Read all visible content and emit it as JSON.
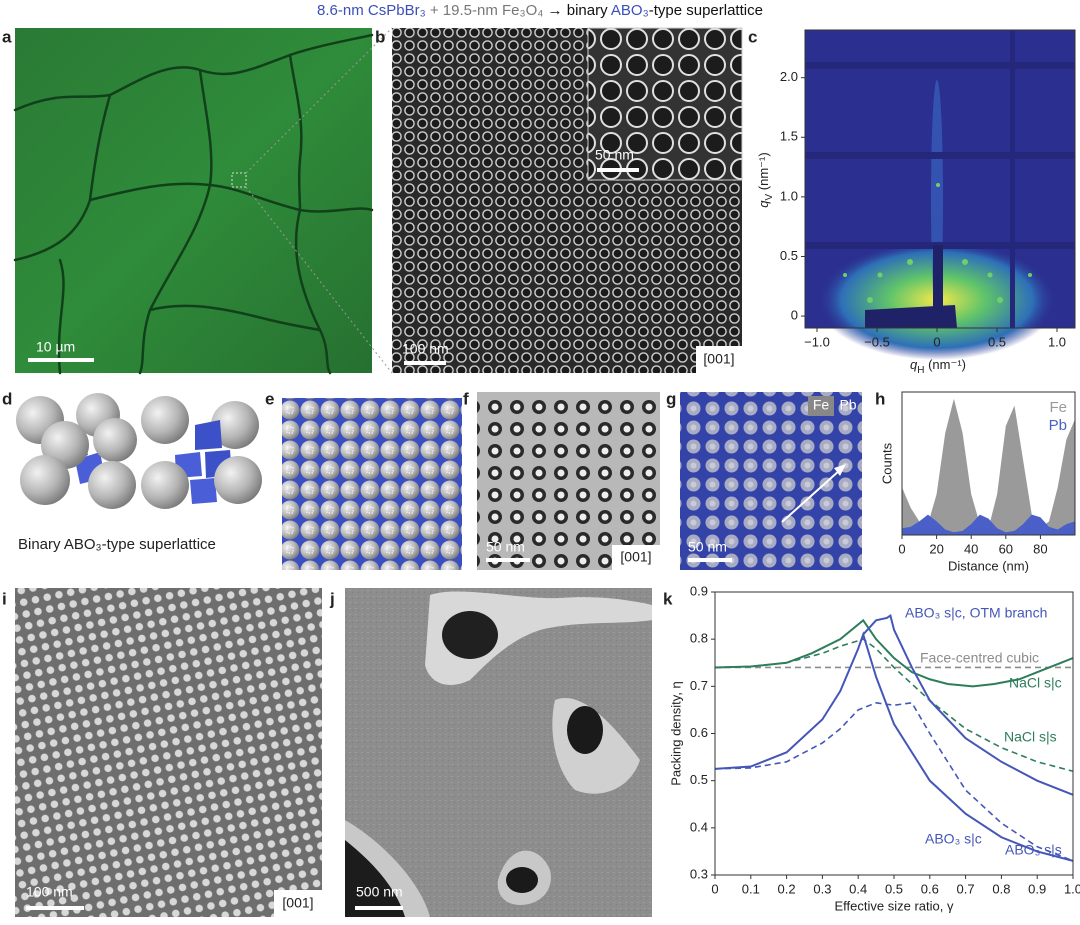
{
  "title": [
    "8.6-nm CsPbBr₃",
    " + 19.5-nm  Fe₃O₄",
    " → binary ",
    "ABO₃",
    "-type superlattice"
  ],
  "panel_labels": [
    "a",
    "b",
    "c",
    "d",
    "e",
    "f",
    "g",
    "h",
    "i",
    "j",
    "k"
  ],
  "scale_bars": {
    "a": "10 µm",
    "b": "100 nm",
    "b_inset": "50 nm",
    "f": "50 nm",
    "g": "50 nm",
    "i": "100 nm",
    "j": "500 nm"
  },
  "zone_axis": {
    "b": "[001]",
    "f": "[001]",
    "i": "[001]"
  },
  "g_channels": [
    "Fe",
    "Pb"
  ],
  "d_caption": "Binary ABO₃-type superlattice",
  "chart_data": [
    {
      "type": "image",
      "xlabel": {
        "symbol": "q",
        "subscript": "H",
        "unit": " (nm⁻¹)"
      },
      "ylabel": {
        "symbol": "q",
        "subscript": "V",
        "unit": " (nm⁻¹)"
      },
      "xlim": [
        -1.1,
        1.15
      ],
      "ylim": [
        -0.1,
        2.4
      ],
      "xticks": [
        {
          "value": -1,
          "label": "−1.0"
        },
        {
          "value": -0.5,
          "label": "−0.5"
        },
        0,
        0.5,
        {
          "value": 1,
          "label": "1.0"
        }
      ],
      "yticks": [
        0,
        0.5,
        {
          "value": 1,
          "label": "1.0"
        },
        1.5,
        {
          "value": 2,
          "label": "2.0"
        }
      ]
    },
    {
      "type": "area",
      "xlabel": "Distance (nm)",
      "ylabel": "Counts",
      "xlim": [
        0,
        100
      ],
      "ylim": [
        0,
        1.05
      ],
      "xticks": [
        0,
        20,
        40,
        60,
        80
      ],
      "series": [
        {
          "name": "Fe",
          "color": "#9a9a9a",
          "x": [
            0,
            5,
            10,
            15,
            20,
            25,
            30,
            35,
            40,
            45,
            50,
            55,
            60,
            65,
            70,
            75,
            80,
            85,
            90,
            95,
            100
          ],
          "values": [
            0.35,
            0.2,
            0.1,
            0.08,
            0.3,
            0.75,
            1.0,
            0.75,
            0.3,
            0.08,
            0.05,
            0.3,
            0.8,
            0.95,
            0.55,
            0.15,
            0.05,
            0.1,
            0.35,
            0.7,
            0.85
          ]
        },
        {
          "name": "Pb",
          "color": "#4a5fc8",
          "x": [
            0,
            5,
            10,
            15,
            20,
            25,
            30,
            35,
            40,
            45,
            50,
            55,
            60,
            65,
            70,
            75,
            80,
            85,
            90,
            95,
            100
          ],
          "values": [
            0.05,
            0.06,
            0.1,
            0.15,
            0.1,
            0.04,
            0.02,
            0.03,
            0.08,
            0.15,
            0.12,
            0.05,
            0.02,
            0.03,
            0.08,
            0.15,
            0.13,
            0.06,
            0.04,
            0.08,
            0.1
          ]
        }
      ]
    },
    {
      "type": "line",
      "xlabel": "Effective size ratio, γ",
      "ylabel": "Packing density, η",
      "xlim": [
        0,
        1
      ],
      "ylim": [
        0.3,
        0.9
      ],
      "xticks": [
        0,
        0.1,
        0.2,
        0.3,
        0.4,
        0.5,
        0.6,
        0.7,
        0.8,
        0.9,
        {
          "value": 1,
          "label": "1.0"
        }
      ],
      "yticks": [
        0.3,
        0.4,
        0.5,
        0.6,
        0.7,
        0.8,
        0.9
      ],
      "series": [
        {
          "name": "Face-centred cubic",
          "color": "#8c8c8c",
          "dash": true,
          "x": [
            0,
            1
          ],
          "values": [
            0.74,
            0.74
          ]
        },
        {
          "name": "NaCl s|c",
          "color": "#2e7d5b",
          "dash": false,
          "x": [
            0,
            0.1,
            0.2,
            0.27,
            0.35,
            0.414,
            0.45,
            0.5,
            0.55,
            0.6,
            0.65,
            0.72,
            0.78,
            0.85,
            0.9,
            1.0
          ],
          "values": [
            0.74,
            0.742,
            0.75,
            0.77,
            0.8,
            0.84,
            0.8,
            0.76,
            0.73,
            0.715,
            0.705,
            0.7,
            0.705,
            0.715,
            0.73,
            0.76
          ]
        },
        {
          "name": "NaCl s|s",
          "color": "#2e7d5b",
          "dash": true,
          "x": [
            0,
            0.1,
            0.2,
            0.3,
            0.35,
            0.414,
            0.45,
            0.5,
            0.6,
            0.7,
            0.8,
            0.9,
            1.0
          ],
          "values": [
            0.74,
            0.742,
            0.75,
            0.77,
            0.785,
            0.8,
            0.78,
            0.74,
            0.67,
            0.61,
            0.57,
            0.54,
            0.52
          ]
        },
        {
          "name": "ABO₃ s|c",
          "color": "#4457b8",
          "dash": false,
          "x": [
            0,
            0.1,
            0.2,
            0.3,
            0.35,
            0.4,
            0.414,
            0.45,
            0.5,
            0.6,
            0.7,
            0.8,
            0.9,
            1.0
          ],
          "values": [
            0.525,
            0.53,
            0.56,
            0.63,
            0.69,
            0.78,
            0.81,
            0.72,
            0.62,
            0.5,
            0.43,
            0.38,
            0.35,
            0.33
          ]
        },
        {
          "name": "ABO₃ s|s",
          "color": "#4457b8",
          "dash": true,
          "x": [
            0,
            0.1,
            0.2,
            0.3,
            0.35,
            0.4,
            0.45,
            0.5,
            0.55,
            0.6,
            0.7,
            0.8,
            0.9,
            1.0
          ],
          "values": [
            0.525,
            0.527,
            0.54,
            0.58,
            0.61,
            0.65,
            0.665,
            0.66,
            0.665,
            0.6,
            0.48,
            0.41,
            0.36,
            0.33
          ]
        },
        {
          "name": "ABO₃ s|c, OTM branch",
          "color": "#4457b8",
          "dash": false,
          "x": [
            0.414,
            0.45,
            0.48,
            0.49,
            0.5,
            0.55,
            0.6,
            0.7,
            0.8,
            0.9,
            1.0
          ],
          "values": [
            0.81,
            0.84,
            0.845,
            0.85,
            0.82,
            0.74,
            0.67,
            0.59,
            0.54,
            0.5,
            0.47
          ]
        }
      ]
    }
  ]
}
